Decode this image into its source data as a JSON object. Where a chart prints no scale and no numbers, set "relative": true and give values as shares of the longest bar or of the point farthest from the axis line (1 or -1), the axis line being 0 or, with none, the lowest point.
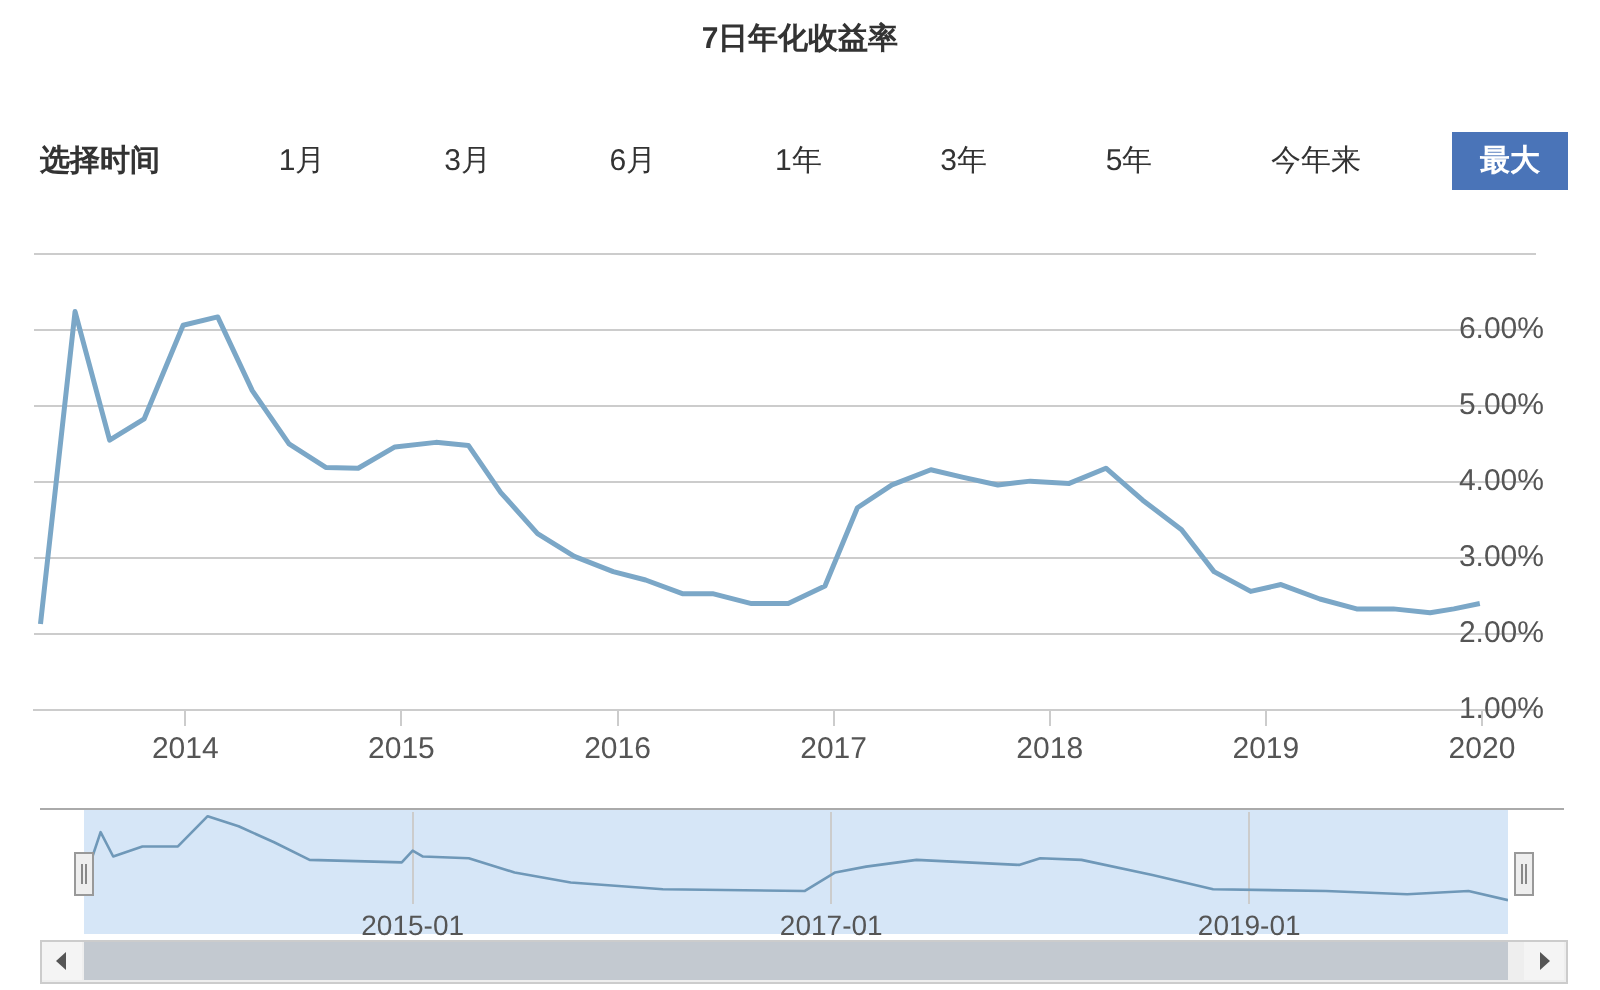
{
  "chart_data": [
    {
      "type": "line",
      "title": "7日年化收益率",
      "annotations": [
        "选择时间",
        "1月",
        "3月",
        "6月",
        "1年",
        "3年",
        "5年",
        "今年来",
        "最大"
      ],
      "x": [
        2013.33,
        2013.49,
        2013.65,
        2013.81,
        2013.99,
        2014.15,
        2014.31,
        2014.48,
        2014.65,
        2014.8,
        2014.97,
        2015.16,
        2015.31,
        2015.46,
        2015.63,
        2015.8,
        2015.98,
        2016.13,
        2016.3,
        2016.44,
        2016.62,
        2016.79,
        2016.96,
        2017.11,
        2017.27,
        2017.45,
        2017.6,
        2017.76,
        2017.91,
        2018.09,
        2018.26,
        2018.43,
        2018.61,
        2018.76,
        2018.93,
        2019.07,
        2019.25,
        2019.42,
        2019.59,
        2019.76,
        2019.87,
        2019.99
      ],
      "series": [
        {
          "color": "#7ba7c7",
          "values": [
            2.13,
            6.24,
            4.55,
            4.83,
            6.06,
            6.17,
            5.2,
            4.5,
            4.19,
            4.18,
            4.46,
            4.52,
            4.48,
            3.86,
            3.32,
            3.02,
            2.82,
            2.71,
            2.53,
            2.53,
            2.4,
            2.4,
            2.63,
            3.66,
            3.96,
            4.16,
            4.06,
            3.96,
            4.01,
            3.98,
            4.18,
            3.76,
            3.37,
            2.82,
            2.56,
            2.65,
            2.46,
            2.33,
            2.33,
            2.28,
            2.33,
            2.4
          ]
        }
      ],
      "xlim": [
        2013.3,
        2020.25
      ],
      "xticks": [
        2014,
        2015,
        2016,
        2017,
        2018,
        2019,
        2020
      ],
      "ylim": [
        1,
        7.05
      ],
      "yticks": [
        {
          "value": 1,
          "label": "1.00%"
        },
        {
          "value": 2,
          "label": "2.00%"
        },
        {
          "value": 3,
          "label": "3.00%"
        },
        {
          "value": 4,
          "label": "4.00%"
        },
        {
          "value": 5,
          "label": "5.00%"
        },
        {
          "value": 6,
          "label": "6.00%"
        },
        {
          "value": 7,
          "label": null
        }
      ],
      "grid": "y"
    },
    {
      "type": "line",
      "relative": true,
      "x": [
        "2013-06-10",
        "2013-07-05",
        "2013-07-27",
        "2013-09-16",
        "2013-11-17",
        "2014-01-08",
        "2014-03-03",
        "2014-05-04",
        "2014-07-05",
        "2014-12-13",
        "2015-01-01",
        "2015-01-19",
        "2015-04-09",
        "2015-06-28",
        "2015-10-04",
        "2016-03-13",
        "2016-11-16",
        "2017-01-08",
        "2017-03-03",
        "2017-05-30",
        "2017-11-25",
        "2018-01-01",
        "2018-03-14",
        "2018-07-16",
        "2018-10-30",
        "2019-05-15",
        "2019-10-04",
        "2020-01-19",
        "2020-03-28"
      ],
      "series": [
        {
          "color": "#6f98b8",
          "values": [
            0.3,
            0.81,
            0.52,
            0.64,
            0.64,
            1,
            0.88,
            0.69,
            0.48,
            0.45,
            0.59,
            0.52,
            0.5,
            0.33,
            0.21,
            0.13,
            0.11,
            0.33,
            0.4,
            0.48,
            0.42,
            0.5,
            0.48,
            0.3,
            0.13,
            0.11,
            0.07,
            0.11,
            0
          ]
        }
      ],
      "xlim": [
        "2013-06-06",
        "2020-03-28"
      ],
      "xticks": [
        "2015-01",
        "2017-01",
        "2019-01"
      ],
      "grid": "x"
    }
  ]
}
